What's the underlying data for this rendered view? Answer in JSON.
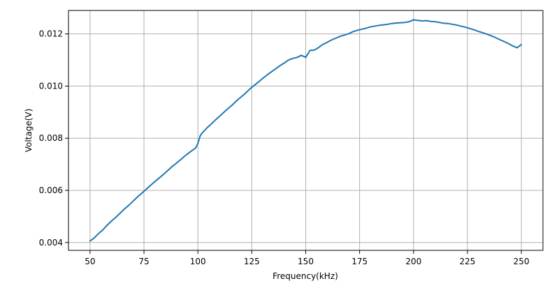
{
  "chart_data": {
    "type": "line",
    "title": "",
    "xlabel": "Frequency(kHz)",
    "ylabel": "Voltage(V)",
    "xlim": [
      40,
      260
    ],
    "ylim": [
      0.0037,
      0.0129
    ],
    "grid": true,
    "legend": "none",
    "x_ticks": [
      50,
      75,
      100,
      125,
      150,
      175,
      200,
      225,
      250
    ],
    "x_tick_labels": [
      "50",
      "75",
      "100",
      "125",
      "150",
      "175",
      "200",
      "225",
      "250"
    ],
    "y_ticks": [
      0.004,
      0.006,
      0.008,
      0.01,
      0.012
    ],
    "y_tick_labels": [
      "0.004",
      "0.006",
      "0.008",
      "0.010",
      "0.012"
    ],
    "colors": {
      "line": "#1f77b4"
    },
    "series": [
      {
        "x": [
          50,
          52,
          54,
          56,
          58,
          60,
          62,
          64,
          66,
          68,
          70,
          72,
          74,
          76,
          78,
          80,
          82,
          84,
          86,
          88,
          90,
          92,
          94,
          96,
          98,
          99,
          100,
          101,
          102,
          104,
          106,
          108,
          110,
          112,
          114,
          116,
          118,
          120,
          122,
          124,
          126,
          128,
          130,
          132,
          134,
          136,
          138,
          140,
          142,
          144,
          146,
          148,
          150,
          152,
          154,
          156,
          158,
          160,
          162,
          164,
          166,
          168,
          170,
          172,
          174,
          176,
          178,
          180,
          182,
          184,
          186,
          188,
          190,
          192,
          194,
          196,
          198,
          200,
          202,
          204,
          206,
          208,
          210,
          212,
          214,
          216,
          218,
          220,
          222,
          224,
          226,
          228,
          230,
          232,
          234,
          236,
          238,
          240,
          242,
          244,
          246,
          248,
          250
        ],
        "y": [
          0.00406,
          0.00418,
          0.00435,
          0.00449,
          0.00467,
          0.00483,
          0.00497,
          0.00513,
          0.00529,
          0.00543,
          0.00559,
          0.00575,
          0.00589,
          0.00604,
          0.00619,
          0.00633,
          0.00647,
          0.00661,
          0.00676,
          0.00691,
          0.00704,
          0.00718,
          0.00732,
          0.00745,
          0.00757,
          0.00763,
          0.0078,
          0.00808,
          0.0082,
          0.00838,
          0.00853,
          0.00869,
          0.00884,
          0.00899,
          0.00914,
          0.00928,
          0.00944,
          0.00958,
          0.00972,
          0.00988,
          0.01002,
          0.01015,
          0.01029,
          0.01042,
          0.01054,
          0.01066,
          0.01078,
          0.01088,
          0.011,
          0.01106,
          0.0111,
          0.01118,
          0.0111,
          0.01137,
          0.01138,
          0.01148,
          0.0116,
          0.01168,
          0.01177,
          0.01184,
          0.01191,
          0.01196,
          0.01201,
          0.01209,
          0.01214,
          0.01218,
          0.01222,
          0.01227,
          0.0123,
          0.01233,
          0.01235,
          0.01237,
          0.0124,
          0.01242,
          0.01243,
          0.01244,
          0.01247,
          0.01254,
          0.01252,
          0.0125,
          0.01251,
          0.01248,
          0.01247,
          0.01244,
          0.01241,
          0.0124,
          0.01237,
          0.01234,
          0.0123,
          0.01226,
          0.01221,
          0.01216,
          0.0121,
          0.01205,
          0.01199,
          0.01193,
          0.01186,
          0.01178,
          0.01171,
          0.01163,
          0.01154,
          0.01147,
          0.01159
        ]
      }
    ]
  }
}
